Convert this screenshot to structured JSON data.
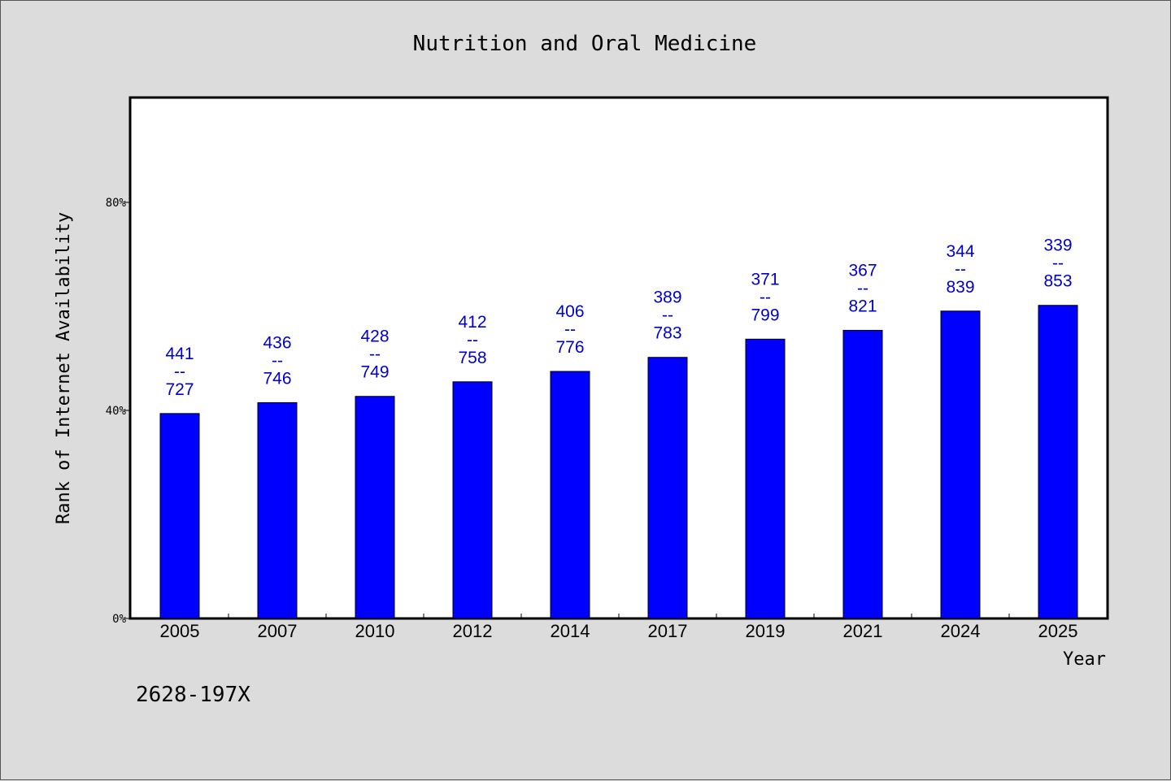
{
  "chart_data": {
    "type": "bar",
    "title": "Nutrition and Oral Medicine",
    "xlabel": "Year",
    "ylabel": "Rank of Internet Availability",
    "categories": [
      "2005",
      "2007",
      "2010",
      "2012",
      "2014",
      "2017",
      "2019",
      "2021",
      "2024",
      "2025"
    ],
    "values": [
      39.4,
      41.5,
      42.7,
      45.5,
      47.5,
      50.2,
      53.7,
      55.4,
      59.1,
      60.2
    ],
    "y_unit": "%",
    "ylim": [
      0,
      100
    ],
    "yticks": [
      0,
      40,
      80
    ],
    "ytick_labels": [
      "0%",
      "40%",
      "80%"
    ],
    "data_labels": [
      {
        "rank": "441",
        "separator": "--",
        "total": "727"
      },
      {
        "rank": "436",
        "separator": "--",
        "total": "746"
      },
      {
        "rank": "428",
        "separator": "--",
        "total": "749"
      },
      {
        "rank": "412",
        "separator": "--",
        "total": "758"
      },
      {
        "rank": "406",
        "separator": "--",
        "total": "776"
      },
      {
        "rank": "389",
        "separator": "--",
        "total": "783"
      },
      {
        "rank": "371",
        "separator": "--",
        "total": "799"
      },
      {
        "rank": "367",
        "separator": "--",
        "total": "821"
      },
      {
        "rank": "344",
        "separator": "--",
        "total": "839"
      },
      {
        "rank": "339",
        "separator": "--",
        "total": "853"
      }
    ],
    "grid": false,
    "bar_color": "#0000ff",
    "label_color": "#0000cc"
  },
  "footnote": "2628-197X"
}
